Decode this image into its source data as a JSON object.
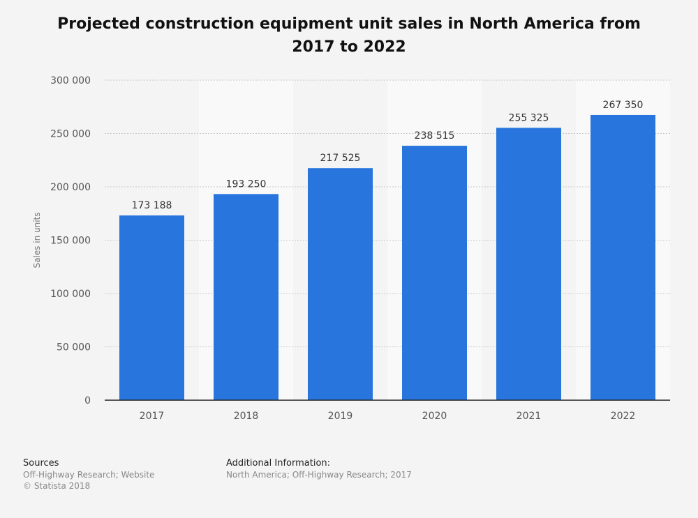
{
  "title": "Projected construction equipment unit sales in North America from 2017 to 2022",
  "chart_data": {
    "type": "bar",
    "categories": [
      "2017",
      "2018",
      "2019",
      "2020",
      "2021",
      "2022"
    ],
    "values": [
      173188,
      193250,
      217525,
      238515,
      255325,
      267350
    ],
    "data_labels": [
      "173 188",
      "193 250",
      "217 525",
      "238 515",
      "255 325",
      "267 350"
    ],
    "ylabel": "Sales in units",
    "xlabel": "",
    "ylim": [
      0,
      300000
    ],
    "yticks": [
      0,
      50000,
      100000,
      150000,
      200000,
      250000,
      300000
    ],
    "ytick_labels": [
      "0",
      "50 000",
      "100 000",
      "150 000",
      "200 000",
      "250 000",
      "300 000"
    ],
    "grid": true,
    "bar_color": "#2876dd"
  },
  "footer": {
    "sources_heading": "Sources",
    "sources_line1": "Off-Highway Research; Website",
    "sources_line2": "© Statista 2018",
    "additional_heading": "Additional Information:",
    "additional_line1": "North America; Off-Highway Research; 2017"
  }
}
